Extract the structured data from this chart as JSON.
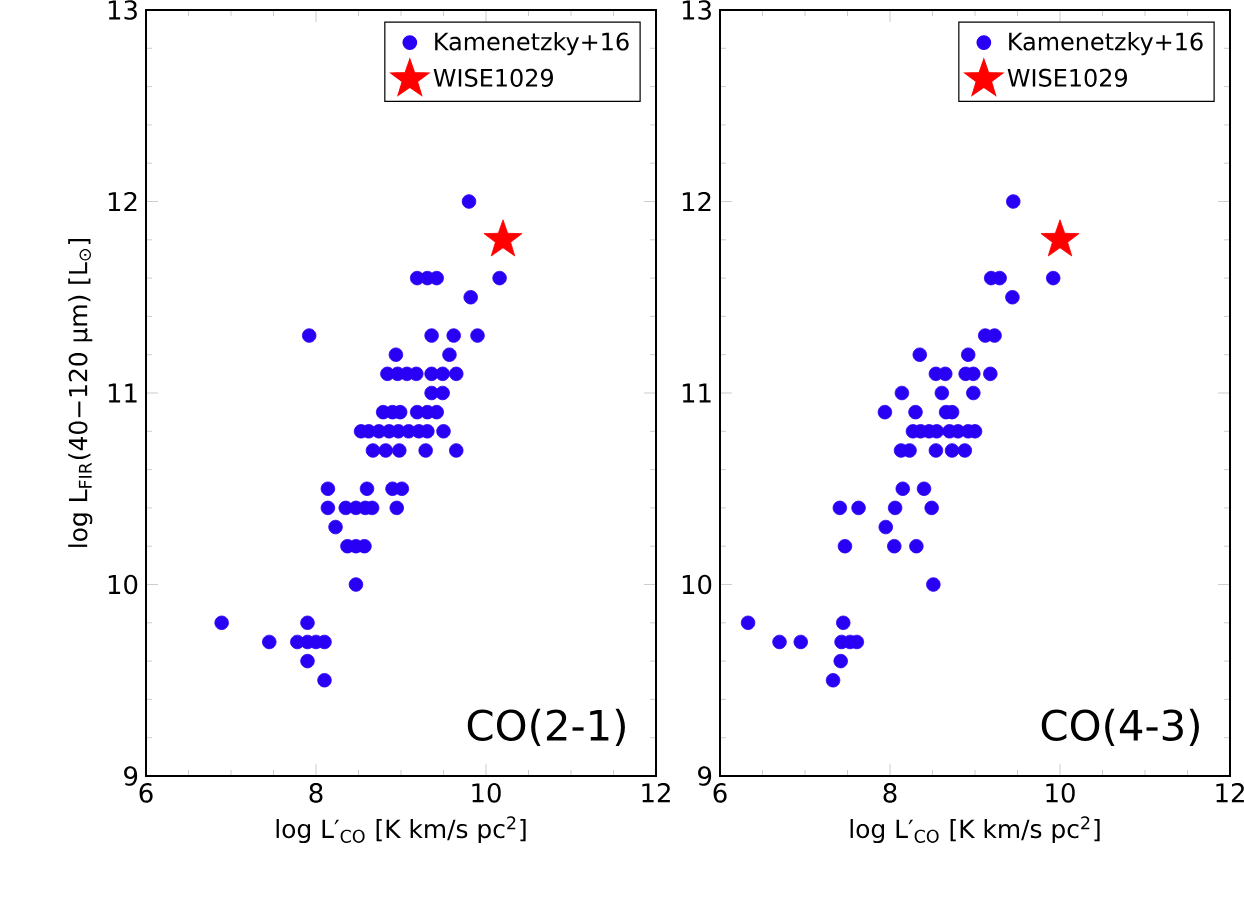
{
  "chart_data": [
    {
      "type": "scatter",
      "xlabel": "log L′$_{CO}$ [K km/s pc$^{2}$]",
      "ylabel": "log L$_{FIR}$(40−120 μm) [L$_{⊙}$]",
      "xlim": [
        6,
        12
      ],
      "ylim": [
        9,
        13
      ],
      "xticks": [
        6,
        8,
        10,
        12
      ],
      "yticks": [
        9,
        10,
        11,
        12,
        13
      ],
      "legend": "top right",
      "annotations": [
        "CO(2-1)"
      ],
      "series": [
        {
          "name": "Kamenetzky+16",
          "color": "#2a00f5",
          "marker": "circle",
          "x": [
            9.8,
            9.19,
            9.31,
            9.42,
            10.16,
            9.82,
            7.92,
            9.36,
            9.62,
            9.9,
            8.94,
            9.57,
            8.84,
            8.96,
            9.07,
            9.18,
            9.36,
            9.49,
            9.65,
            9.36,
            9.49,
            8.79,
            8.9,
            8.99,
            9.19,
            9.31,
            9.42,
            8.53,
            8.62,
            8.74,
            8.86,
            8.97,
            9.09,
            9.21,
            9.31,
            9.5,
            8.67,
            8.82,
            8.98,
            9.29,
            9.65,
            8.14,
            8.6,
            8.9,
            9.01,
            8.14,
            8.35,
            8.47,
            8.58,
            8.66,
            8.95,
            8.23,
            8.37,
            8.47,
            8.57,
            8.47,
            6.89,
            7.9,
            7.45,
            7.78,
            7.9,
            8.0,
            8.1,
            7.9,
            8.1
          ],
          "values": [
            12.0,
            11.6,
            11.6,
            11.6,
            11.6,
            11.5,
            11.3,
            11.3,
            11.3,
            11.3,
            11.2,
            11.2,
            11.1,
            11.1,
            11.1,
            11.1,
            11.1,
            11.1,
            11.1,
            11.0,
            11.0,
            10.9,
            10.9,
            10.9,
            10.9,
            10.9,
            10.9,
            10.8,
            10.8,
            10.8,
            10.8,
            10.8,
            10.8,
            10.8,
            10.8,
            10.8,
            10.7,
            10.7,
            10.7,
            10.7,
            10.7,
            10.5,
            10.5,
            10.5,
            10.5,
            10.4,
            10.4,
            10.4,
            10.4,
            10.4,
            10.4,
            10.3,
            10.2,
            10.2,
            10.2,
            10.0,
            9.8,
            9.8,
            9.7,
            9.7,
            9.7,
            9.7,
            9.7,
            9.6,
            9.5
          ]
        },
        {
          "name": "WISE1029",
          "color": "#ff0000",
          "marker": "star",
          "x": [
            10.2
          ],
          "values": [
            11.8
          ]
        }
      ]
    },
    {
      "type": "scatter",
      "xlabel": "log L′$_{CO}$ [K km/s pc$^{2}$]",
      "xlim": [
        6,
        12
      ],
      "ylim": [
        9,
        13
      ],
      "xticks": [
        6,
        8,
        10,
        12
      ],
      "yticks": [
        9,
        10,
        11,
        12,
        13
      ],
      "legend": "top right",
      "annotations": [
        "CO(4-3)"
      ],
      "series": [
        {
          "name": "Kamenetzky+16",
          "color": "#2a00f5",
          "marker": "circle",
          "x": [
            9.45,
            9.19,
            9.29,
            9.92,
            9.44,
            9.12,
            9.23,
            8.35,
            8.92,
            8.54,
            8.65,
            8.89,
            8.98,
            9.18,
            8.14,
            8.61,
            8.98,
            7.94,
            8.3,
            8.66,
            8.73,
            8.27,
            8.36,
            8.46,
            8.55,
            8.7,
            8.8,
            8.92,
            9.0,
            8.13,
            8.23,
            8.54,
            8.73,
            8.88,
            8.15,
            8.4,
            7.41,
            7.63,
            8.06,
            8.49,
            7.95,
            7.47,
            8.05,
            8.31,
            8.51,
            6.33,
            7.45,
            6.7,
            6.95,
            7.43,
            7.53,
            7.61,
            7.42,
            7.33
          ],
          "values": [
            12.0,
            11.6,
            11.6,
            11.6,
            11.5,
            11.3,
            11.3,
            11.2,
            11.2,
            11.1,
            11.1,
            11.1,
            11.1,
            11.1,
            11.0,
            11.0,
            11.0,
            10.9,
            10.9,
            10.9,
            10.9,
            10.8,
            10.8,
            10.8,
            10.8,
            10.8,
            10.8,
            10.8,
            10.8,
            10.7,
            10.7,
            10.7,
            10.7,
            10.7,
            10.5,
            10.5,
            10.4,
            10.4,
            10.4,
            10.4,
            10.3,
            10.2,
            10.2,
            10.2,
            10.0,
            9.8,
            9.8,
            9.7,
            9.7,
            9.7,
            9.7,
            9.7,
            9.6,
            9.5
          ]
        },
        {
          "name": "WISE1029",
          "color": "#ff0000",
          "marker": "star",
          "x": [
            10.0
          ],
          "values": [
            11.8
          ]
        }
      ]
    }
  ]
}
